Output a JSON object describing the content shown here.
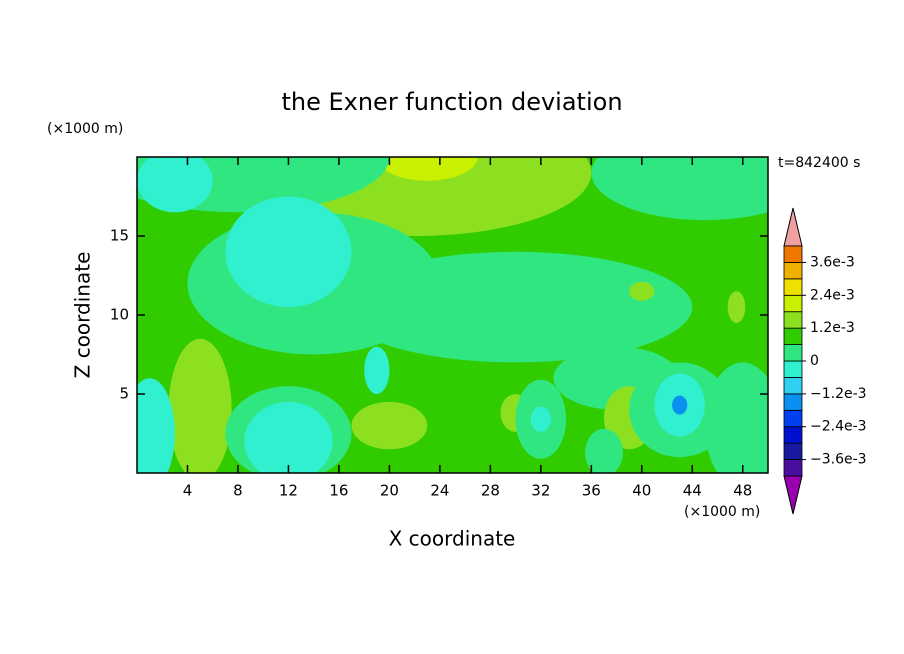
{
  "chart_data": {
    "type": "contour",
    "title": "the Exner function deviation",
    "x_label": "X coordinate",
    "y_label": "Z coordinate",
    "x_unit": "(×1000 m)",
    "y_unit": "(×1000 m)",
    "time_label": "t=842400 s",
    "xlim": [
      0,
      50
    ],
    "ylim": [
      0,
      20
    ],
    "xticks": [
      4,
      8,
      12,
      16,
      20,
      24,
      28,
      32,
      36,
      40,
      44,
      48
    ],
    "yticks": [
      5,
      10,
      15
    ],
    "levels": [
      -0.0042,
      -0.0036,
      -0.003,
      -0.0024,
      -0.0018,
      -0.0012,
      -0.0006,
      0,
      0.0006,
      0.0012,
      0.0018,
      0.0024,
      0.003,
      0.0036,
      0.0042
    ],
    "level_colors": [
      "#9a00b0",
      "#4b0fa0",
      "#1a1aa0",
      "#0010d0",
      "#0040f0",
      "#0a90f0",
      "#30d0f0",
      "#30f0d0",
      "#30e680",
      "#30cc00",
      "#8ce020",
      "#c8f000",
      "#f0e000",
      "#f0b000",
      "#f07800",
      "#f03c00",
      "#f02020"
    ],
    "extend_top_color": "#f0a0a0",
    "cbar_ticks": [
      {
        "value": 0.0036,
        "label": "3.6e-3"
      },
      {
        "value": 0.0024,
        "label": "2.4e-3"
      },
      {
        "value": 0.0012,
        "label": "1.2e-3"
      },
      0,
      {
        "value": -0.0012,
        "label": "−1.2e-3"
      },
      {
        "value": -0.0024,
        "label": "−2.4e-3"
      },
      {
        "value": -0.0036,
        "label": "−3.6e-3"
      }
    ]
  }
}
